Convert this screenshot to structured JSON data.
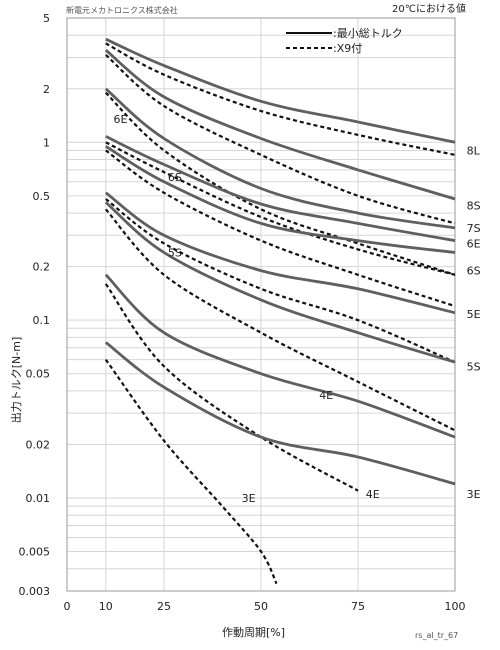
{
  "header": {
    "maker": "新電元メカトロニクス株式会社",
    "condition": "20℃における値"
  },
  "footer": {
    "code": "rs_al_tr_67"
  },
  "chart_data": {
    "type": "line",
    "xlabel": "作動周期[%]",
    "ylabel": "出力トルク[N-m]",
    "xlim": [
      0,
      100
    ],
    "ylim": [
      0.003,
      5
    ],
    "yscale": "log",
    "x_ticks": [
      "0",
      "10",
      "25",
      "50",
      "75",
      "100"
    ],
    "y_ticks": [
      {
        "v": 5,
        "label": "5"
      },
      {
        "v": 2,
        "label": "2"
      },
      {
        "v": 1,
        "label": "1"
      },
      {
        "v": 0.5,
        "label": "0.5"
      },
      {
        "v": 0.2,
        "label": "0.2"
      },
      {
        "v": 0.1,
        "label": "0.1"
      },
      {
        "v": 0.05,
        "label": "0.05"
      },
      {
        "v": 0.02,
        "label": "0.02"
      },
      {
        "v": 0.01,
        "label": "0.01"
      },
      {
        "v": 0.005,
        "label": "0.005"
      },
      {
        "v": 0.003,
        "label": "0.003"
      }
    ],
    "grid": true,
    "legend": {
      "position": "top-right",
      "entries": [
        {
          "label": ":最小総トルク",
          "style": "solid"
        },
        {
          "label": ":X9付",
          "style": "dashed"
        }
      ]
    },
    "series": [
      {
        "name": "8L",
        "style": "solid",
        "x": [
          10,
          25,
          50,
          75,
          100
        ],
        "y": [
          3.8,
          2.7,
          1.7,
          1.3,
          1.0
        ]
      },
      {
        "name": "8L",
        "style": "dashed",
        "x": [
          10,
          25,
          50,
          75,
          100
        ],
        "y": [
          3.6,
          2.4,
          1.5,
          1.1,
          0.85
        ]
      },
      {
        "name": "8S",
        "style": "solid",
        "x": [
          10,
          25,
          50,
          75,
          100
        ],
        "y": [
          3.3,
          1.8,
          1.05,
          0.7,
          0.48
        ]
      },
      {
        "name": "8S",
        "style": "dashed",
        "x": [
          10,
          25,
          50,
          75,
          100
        ],
        "y": [
          3.1,
          1.6,
          0.85,
          0.5,
          0.35
        ]
      },
      {
        "name": "7S",
        "style": "solid",
        "x": [
          10,
          25,
          50,
          75,
          100
        ],
        "y": [
          2.0,
          1.05,
          0.55,
          0.4,
          0.33
        ]
      },
      {
        "name": "7S",
        "style": "dashed",
        "x": [
          10,
          25,
          50,
          75,
          100
        ],
        "y": [
          1.9,
          0.9,
          0.42,
          0.27,
          0.18
        ]
      },
      {
        "name": "6E",
        "style": "solid",
        "x": [
          10,
          25,
          50,
          75,
          100
        ],
        "y": [
          1.08,
          0.75,
          0.45,
          0.35,
          0.28
        ]
      },
      {
        "name": "6E",
        "style": "dashed",
        "x": [
          10,
          25,
          50,
          75,
          100
        ],
        "y": [
          1.0,
          0.68,
          0.38,
          0.25,
          0.18
        ]
      },
      {
        "name": "6S",
        "style": "solid",
        "x": [
          10,
          25,
          50,
          75,
          100
        ],
        "y": [
          0.95,
          0.6,
          0.35,
          0.28,
          0.24
        ]
      },
      {
        "name": "6S",
        "style": "dashed",
        "x": [
          10,
          25,
          50,
          75,
          100
        ],
        "y": [
          0.9,
          0.52,
          0.28,
          0.18,
          0.12
        ]
      },
      {
        "name": "5E",
        "style": "solid",
        "x": [
          10,
          25,
          50,
          75,
          100
        ],
        "y": [
          0.52,
          0.3,
          0.19,
          0.15,
          0.11
        ]
      },
      {
        "name": "5E",
        "style": "dashed",
        "x": [
          10,
          25,
          50,
          75,
          100
        ],
        "y": [
          0.48,
          0.27,
          0.15,
          0.1,
          0.058
        ]
      },
      {
        "name": "5S",
        "style": "solid",
        "x": [
          10,
          25,
          50,
          75,
          100
        ],
        "y": [
          0.46,
          0.24,
          0.13,
          0.085,
          0.058
        ]
      },
      {
        "name": "5S",
        "style": "dashed",
        "x": [
          10,
          25,
          50,
          75,
          100
        ],
        "y": [
          0.42,
          0.18,
          0.085,
          0.045,
          0.024
        ]
      },
      {
        "name": "4E",
        "style": "solid",
        "x": [
          10,
          25,
          50,
          75,
          100
        ],
        "y": [
          0.18,
          0.085,
          0.05,
          0.035,
          0.022
        ]
      },
      {
        "name": "4E",
        "style": "dashed",
        "x": [
          10,
          25,
          50,
          75
        ],
        "y": [
          0.16,
          0.055,
          0.022,
          0.011
        ]
      },
      {
        "name": "3E",
        "style": "solid",
        "x": [
          10,
          25,
          50,
          75,
          100
        ],
        "y": [
          0.075,
          0.042,
          0.022,
          0.017,
          0.012
        ]
      },
      {
        "name": "3E",
        "style": "dashed",
        "x": [
          10,
          25,
          40,
          50,
          54
        ],
        "y": [
          0.06,
          0.021,
          0.009,
          0.005,
          0.0033
        ]
      }
    ],
    "labels": [
      {
        "text": "8L",
        "x": 103,
        "y": 0.9
      },
      {
        "text": "8S",
        "x": 103,
        "y": 0.44
      },
      {
        "text": "7S",
        "x": 103,
        "y": 0.33
      },
      {
        "text": "6E",
        "x": 103,
        "y": 0.27
      },
      {
        "text": "6E",
        "x": 12,
        "y": 1.35
      },
      {
        "text": "6S",
        "x": 103,
        "y": 0.19
      },
      {
        "text": "6S",
        "x": 26,
        "y": 0.64
      },
      {
        "text": "5E",
        "x": 103,
        "y": 0.108
      },
      {
        "text": "5S",
        "x": 103,
        "y": 0.055
      },
      {
        "text": "5S",
        "x": 26,
        "y": 0.24
      },
      {
        "text": "4E",
        "x": 65,
        "y": 0.038
      },
      {
        "text": "4E",
        "x": 77,
        "y": 0.0105
      },
      {
        "text": "3E",
        "x": 103,
        "y": 0.0105
      },
      {
        "text": "3E",
        "x": 45,
        "y": 0.01
      }
    ]
  }
}
